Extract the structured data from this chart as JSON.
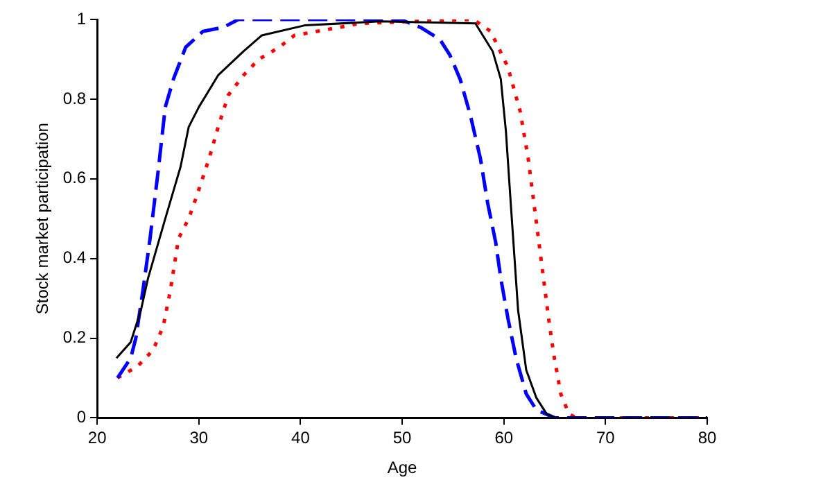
{
  "chart_data": {
    "type": "line",
    "xlabel": "Age",
    "ylabel": "Stock market participation",
    "xlim": [
      20,
      80
    ],
    "xticks": [
      20,
      30,
      40,
      50,
      60,
      70,
      80
    ],
    "ylim": [
      0,
      1
    ],
    "yticks": [
      0,
      0.2,
      0.4,
      0.6,
      0.8,
      1
    ],
    "grid": false,
    "legend": false,
    "marker": "none",
    "series": [
      {
        "color": "#000000",
        "line_style": "solid",
        "x": [
          21.9,
          23.3,
          24.3,
          25.0,
          26.7,
          28.2,
          29.0,
          30.0,
          31.9,
          34.4,
          36.2,
          40.4,
          47.8,
          57.2,
          58.9,
          59.7,
          60.2,
          60.7,
          61.4,
          62.2,
          63.2,
          64.2,
          65.0,
          80.0
        ],
        "values": [
          0.15,
          0.19,
          0.27,
          0.35,
          0.5,
          0.63,
          0.73,
          0.78,
          0.86,
          0.92,
          0.96,
          0.985,
          0.995,
          0.99,
          0.92,
          0.85,
          0.72,
          0.53,
          0.27,
          0.12,
          0.05,
          0.01,
          0,
          0
        ]
      },
      {
        "color": "#0000ff",
        "line_style": "dashed",
        "x": [
          22.0,
          23.3,
          23.8,
          24.5,
          25.2,
          26.0,
          26.7,
          27.5,
          28.7,
          30.4,
          32.4,
          33.9,
          49.8,
          51.8,
          53.7,
          54.7,
          55.7,
          56.7,
          57.7,
          58.4,
          59.2,
          59.7,
          60.4,
          61.2,
          62.2,
          63.2,
          64.1,
          65.0,
          80.0
        ],
        "values": [
          0.1,
          0.15,
          0.2,
          0.32,
          0.45,
          0.62,
          0.78,
          0.85,
          0.93,
          0.97,
          0.98,
          1,
          1,
          0.98,
          0.95,
          0.91,
          0.85,
          0.76,
          0.65,
          0.54,
          0.44,
          0.35,
          0.25,
          0.15,
          0.06,
          0.02,
          0.01,
          0,
          0
        ]
      },
      {
        "color": "#ff0000",
        "line_style": "dotted",
        "x": [
          22.0,
          24.0,
          25.5,
          26.5,
          27.2,
          28.0,
          29.0,
          29.7,
          31.0,
          31.9,
          32.9,
          34.4,
          35.9,
          37.9,
          39.4,
          43.8,
          45.8,
          57.0,
          58.7,
          60.4,
          61.6,
          62.4,
          62.9,
          63.4,
          63.9,
          64.4,
          64.9,
          65.6,
          66.4,
          67.1,
          80.0
        ],
        "values": [
          0.1,
          0.13,
          0.17,
          0.23,
          0.32,
          0.45,
          0.5,
          0.55,
          0.65,
          0.73,
          0.81,
          0.86,
          0.9,
          0.93,
          0.96,
          0.98,
          0.99,
          1,
          0.97,
          0.88,
          0.77,
          0.65,
          0.55,
          0.45,
          0.35,
          0.25,
          0.16,
          0.06,
          0.01,
          0,
          0
        ]
      }
    ]
  }
}
